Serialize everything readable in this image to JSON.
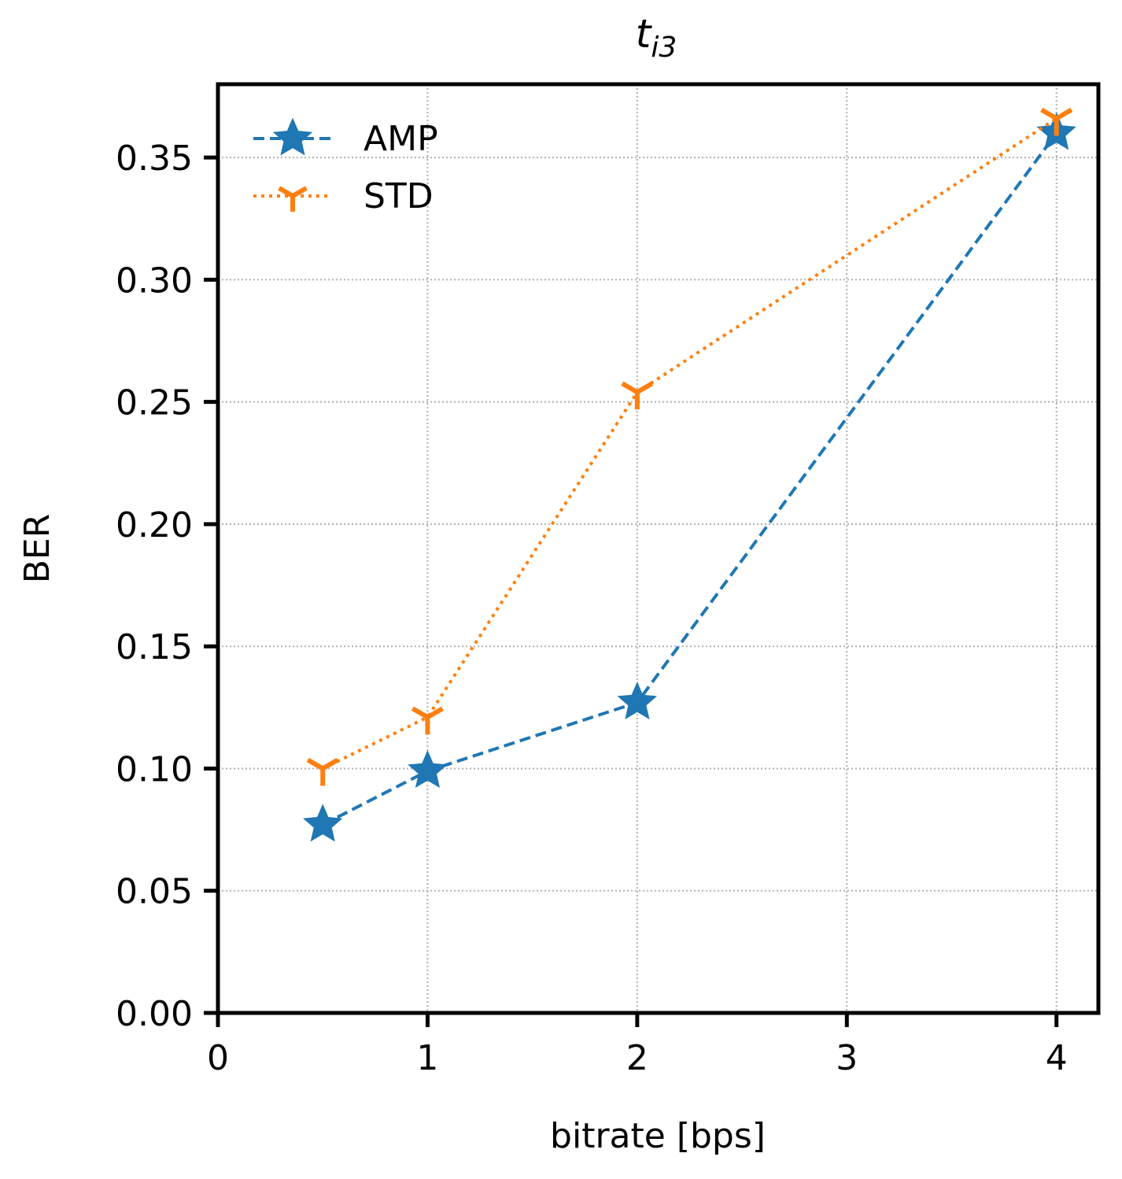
{
  "chart_data": {
    "type": "line",
    "title": {
      "base": "t",
      "subscript": "i3"
    },
    "xlabel": "bitrate [bps]",
    "ylabel": "BER",
    "xlim": [
      0,
      4.2
    ],
    "ylim": [
      0,
      0.38
    ],
    "xticks": [
      0,
      1,
      2,
      3,
      4
    ],
    "xtick_labels": [
      "0",
      "1",
      "2",
      "3",
      "4"
    ],
    "yticks": [
      0,
      0.05,
      0.1,
      0.15,
      0.2,
      0.25,
      0.3,
      0.35
    ],
    "ytick_labels": [
      "0.00",
      "0.05",
      "0.10",
      "0.15",
      "0.20",
      "0.25",
      "0.30",
      "0.35"
    ],
    "grid": true,
    "legend_position": "top-left",
    "series": [
      {
        "name": "AMP",
        "color": "#1f77b4",
        "linestyle": "dashed",
        "marker": "star",
        "x": [
          0.5,
          1,
          2,
          4
        ],
        "y": [
          0.077,
          0.099,
          0.127,
          0.36
        ]
      },
      {
        "name": "STD",
        "color": "#ff7f0e",
        "linestyle": "dotted",
        "marker": "tri_down",
        "x": [
          0.5,
          1,
          2,
          4
        ],
        "y": [
          0.1,
          0.121,
          0.254,
          0.366
        ]
      }
    ]
  }
}
